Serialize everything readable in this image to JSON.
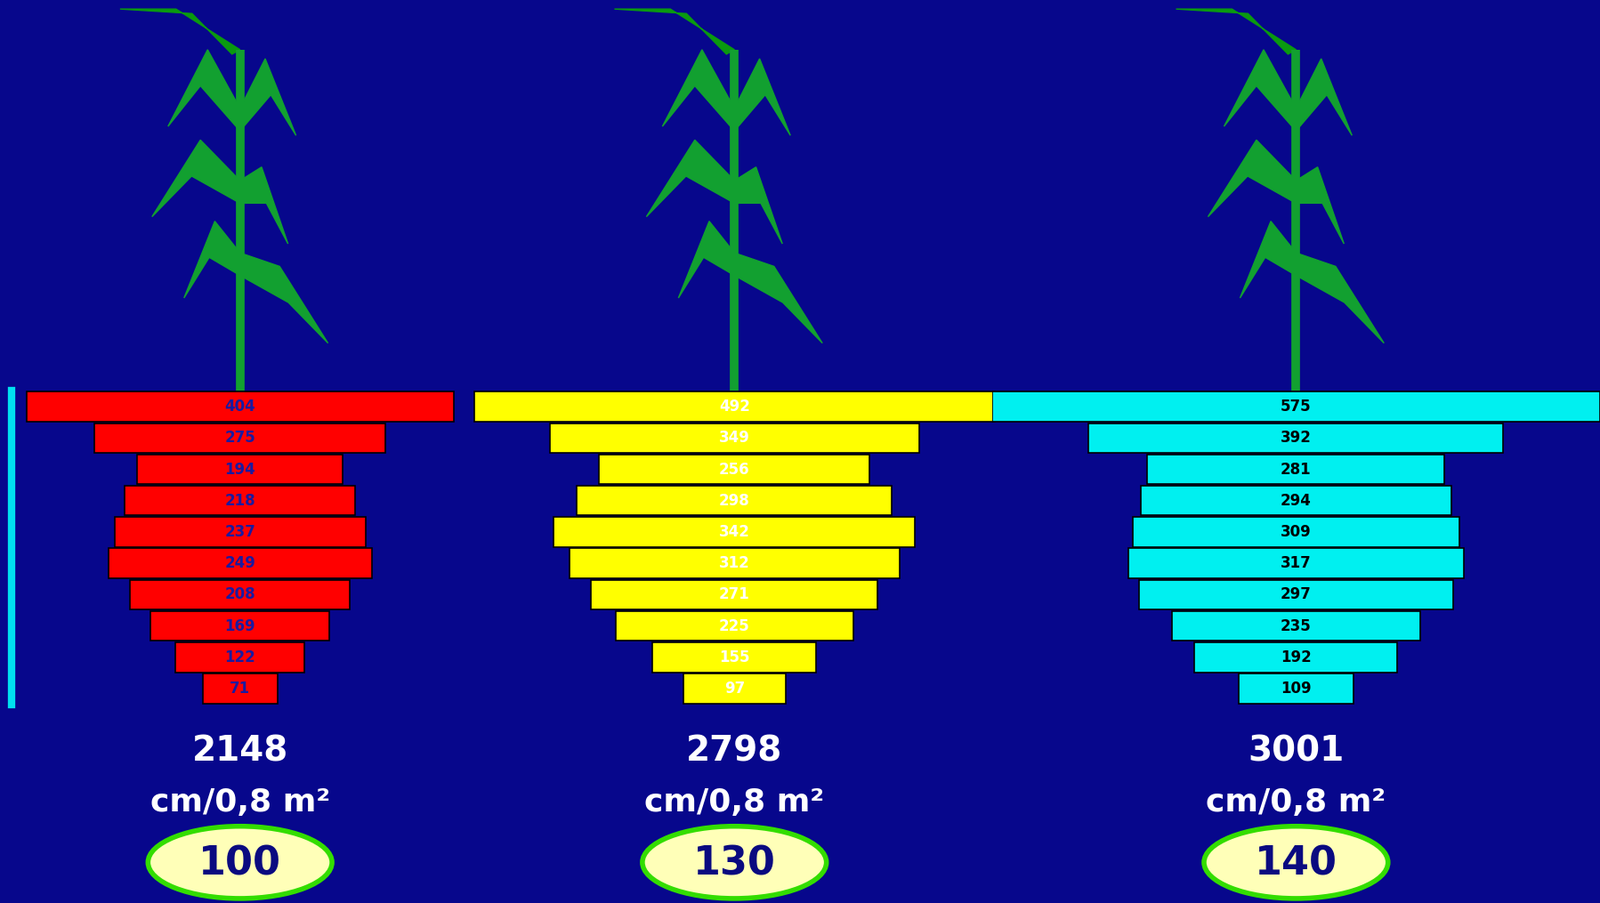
{
  "chart_data": [
    {
      "type": "bar",
      "orientation": "horizontal",
      "color": "#ff0000",
      "data_labels": true,
      "tick_labels": false,
      "values": [
        404,
        275,
        194,
        218,
        237,
        249,
        208,
        169,
        122,
        71
      ],
      "total": 2148,
      "total_unit": "cm/0,8 m²",
      "relative_value": 100
    },
    {
      "type": "bar",
      "orientation": "horizontal",
      "color": "#ffff00",
      "data_labels": true,
      "tick_labels": false,
      "values": [
        492,
        349,
        256,
        298,
        342,
        312,
        271,
        225,
        155,
        97
      ],
      "total": 2798,
      "total_unit": "cm/0,8 m²",
      "relative_value": 130
    },
    {
      "type": "bar",
      "orientation": "horizontal",
      "color": "#00f0f0",
      "data_labels": true,
      "tick_labels": false,
      "values": [
        575,
        392,
        281,
        294,
        309,
        317,
        297,
        235,
        192,
        109
      ],
      "total": 3001,
      "total_unit": "cm/0,8 m²",
      "relative_value": 140
    }
  ]
}
